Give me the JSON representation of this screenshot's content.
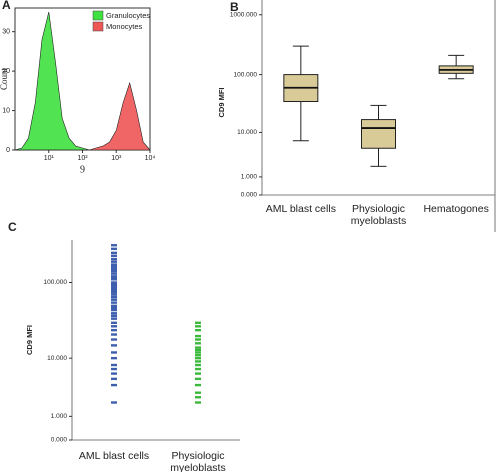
{
  "chart_data": [
    {
      "type": "area",
      "panel_label": "A",
      "xlabel": "9",
      "ylabel": "Count",
      "xscale": "log",
      "xlim": [
        1,
        10000
      ],
      "xticks": [
        {
          "value": 10,
          "label": "10¹"
        },
        {
          "value": 100,
          "label": "10²"
        },
        {
          "value": 1000,
          "label": "10³"
        },
        {
          "value": 10000,
          "label": "10⁴"
        }
      ],
      "ylim": [
        0,
        36
      ],
      "yticks": [
        0,
        10,
        20,
        30
      ],
      "legend": "upper right",
      "x": [
        1,
        1.6,
        2.5,
        4,
        6.3,
        10,
        16,
        25,
        40,
        63,
        100,
        160,
        250,
        400,
        630,
        1000,
        1600,
        2500,
        4000,
        6300,
        10000
      ],
      "series": [
        {
          "name": "Granulocytes",
          "color": "#3fe03f",
          "values": [
            0,
            0.5,
            3,
            12,
            28,
            35,
            22,
            8,
            3,
            1,
            0.5,
            0,
            0,
            0,
            0,
            0,
            0,
            0,
            0,
            0,
            0
          ]
        },
        {
          "name": "Monocytes",
          "color": "#ee5555",
          "values": [
            0,
            0,
            0,
            0,
            0,
            0,
            0,
            0,
            0,
            0,
            0,
            0,
            0.5,
            1,
            2,
            5,
            12,
            17,
            10,
            2,
            0
          ]
        }
      ]
    },
    {
      "type": "box",
      "panel_label": "B",
      "ylabel": "CD9 MFI",
      "yscale": "symlog",
      "color": "#d8cb98",
      "ylim": [
        0,
        1200
      ],
      "yticks": [
        {
          "value": 0,
          "label": "0.000"
        },
        {
          "value": 1,
          "label": "1.000"
        },
        {
          "value": 10,
          "label": "10.000"
        },
        {
          "value": 100,
          "label": "100.000"
        },
        {
          "value": 1000,
          "label": "1000.000"
        }
      ],
      "categories": [
        "AML blast cells",
        "Physiologic myeloblasts",
        "Hematogones"
      ],
      "boxes": [
        {
          "min": 7,
          "q1": 35,
          "median": 60,
          "q3": 100,
          "max": 300
        },
        {
          "min": 2,
          "q1": 5,
          "median": 12,
          "q3": 17,
          "max": 30
        },
        {
          "min": 85,
          "q1": 105,
          "median": 120,
          "q3": 140,
          "max": 210
        }
      ]
    },
    {
      "type": "strip",
      "panel_label": "C",
      "ylabel": "CD9 MFI",
      "yscale": "symlog",
      "ylim": [
        0,
        350
      ],
      "yticks": [
        {
          "value": 0,
          "label": "0.000"
        },
        {
          "value": 1,
          "label": "1.000"
        },
        {
          "value": 10,
          "label": "10.000"
        },
        {
          "value": 100,
          "label": "100.000"
        }
      ],
      "categories": [
        "AML blast cells",
        "Physiologic myeloblasts"
      ],
      "series": [
        {
          "color": "#3d5fae",
          "values": [
            300,
            270,
            240,
            220,
            200,
            185,
            170,
            160,
            150,
            140,
            130,
            120,
            115,
            110,
            100,
            95,
            90,
            85,
            80,
            75,
            70,
            65,
            60,
            55,
            50,
            47,
            44,
            40,
            37,
            34,
            30,
            27,
            24,
            21,
            18,
            15,
            12,
            10,
            8,
            7,
            6,
            5,
            4,
            2
          ]
        },
        {
          "color": "#3cb83c",
          "values": [
            30,
            27,
            24,
            20,
            18,
            16,
            14,
            13,
            12,
            11,
            10,
            9,
            8,
            7,
            6,
            5,
            4,
            3,
            2.5,
            2
          ]
        }
      ]
    }
  ]
}
